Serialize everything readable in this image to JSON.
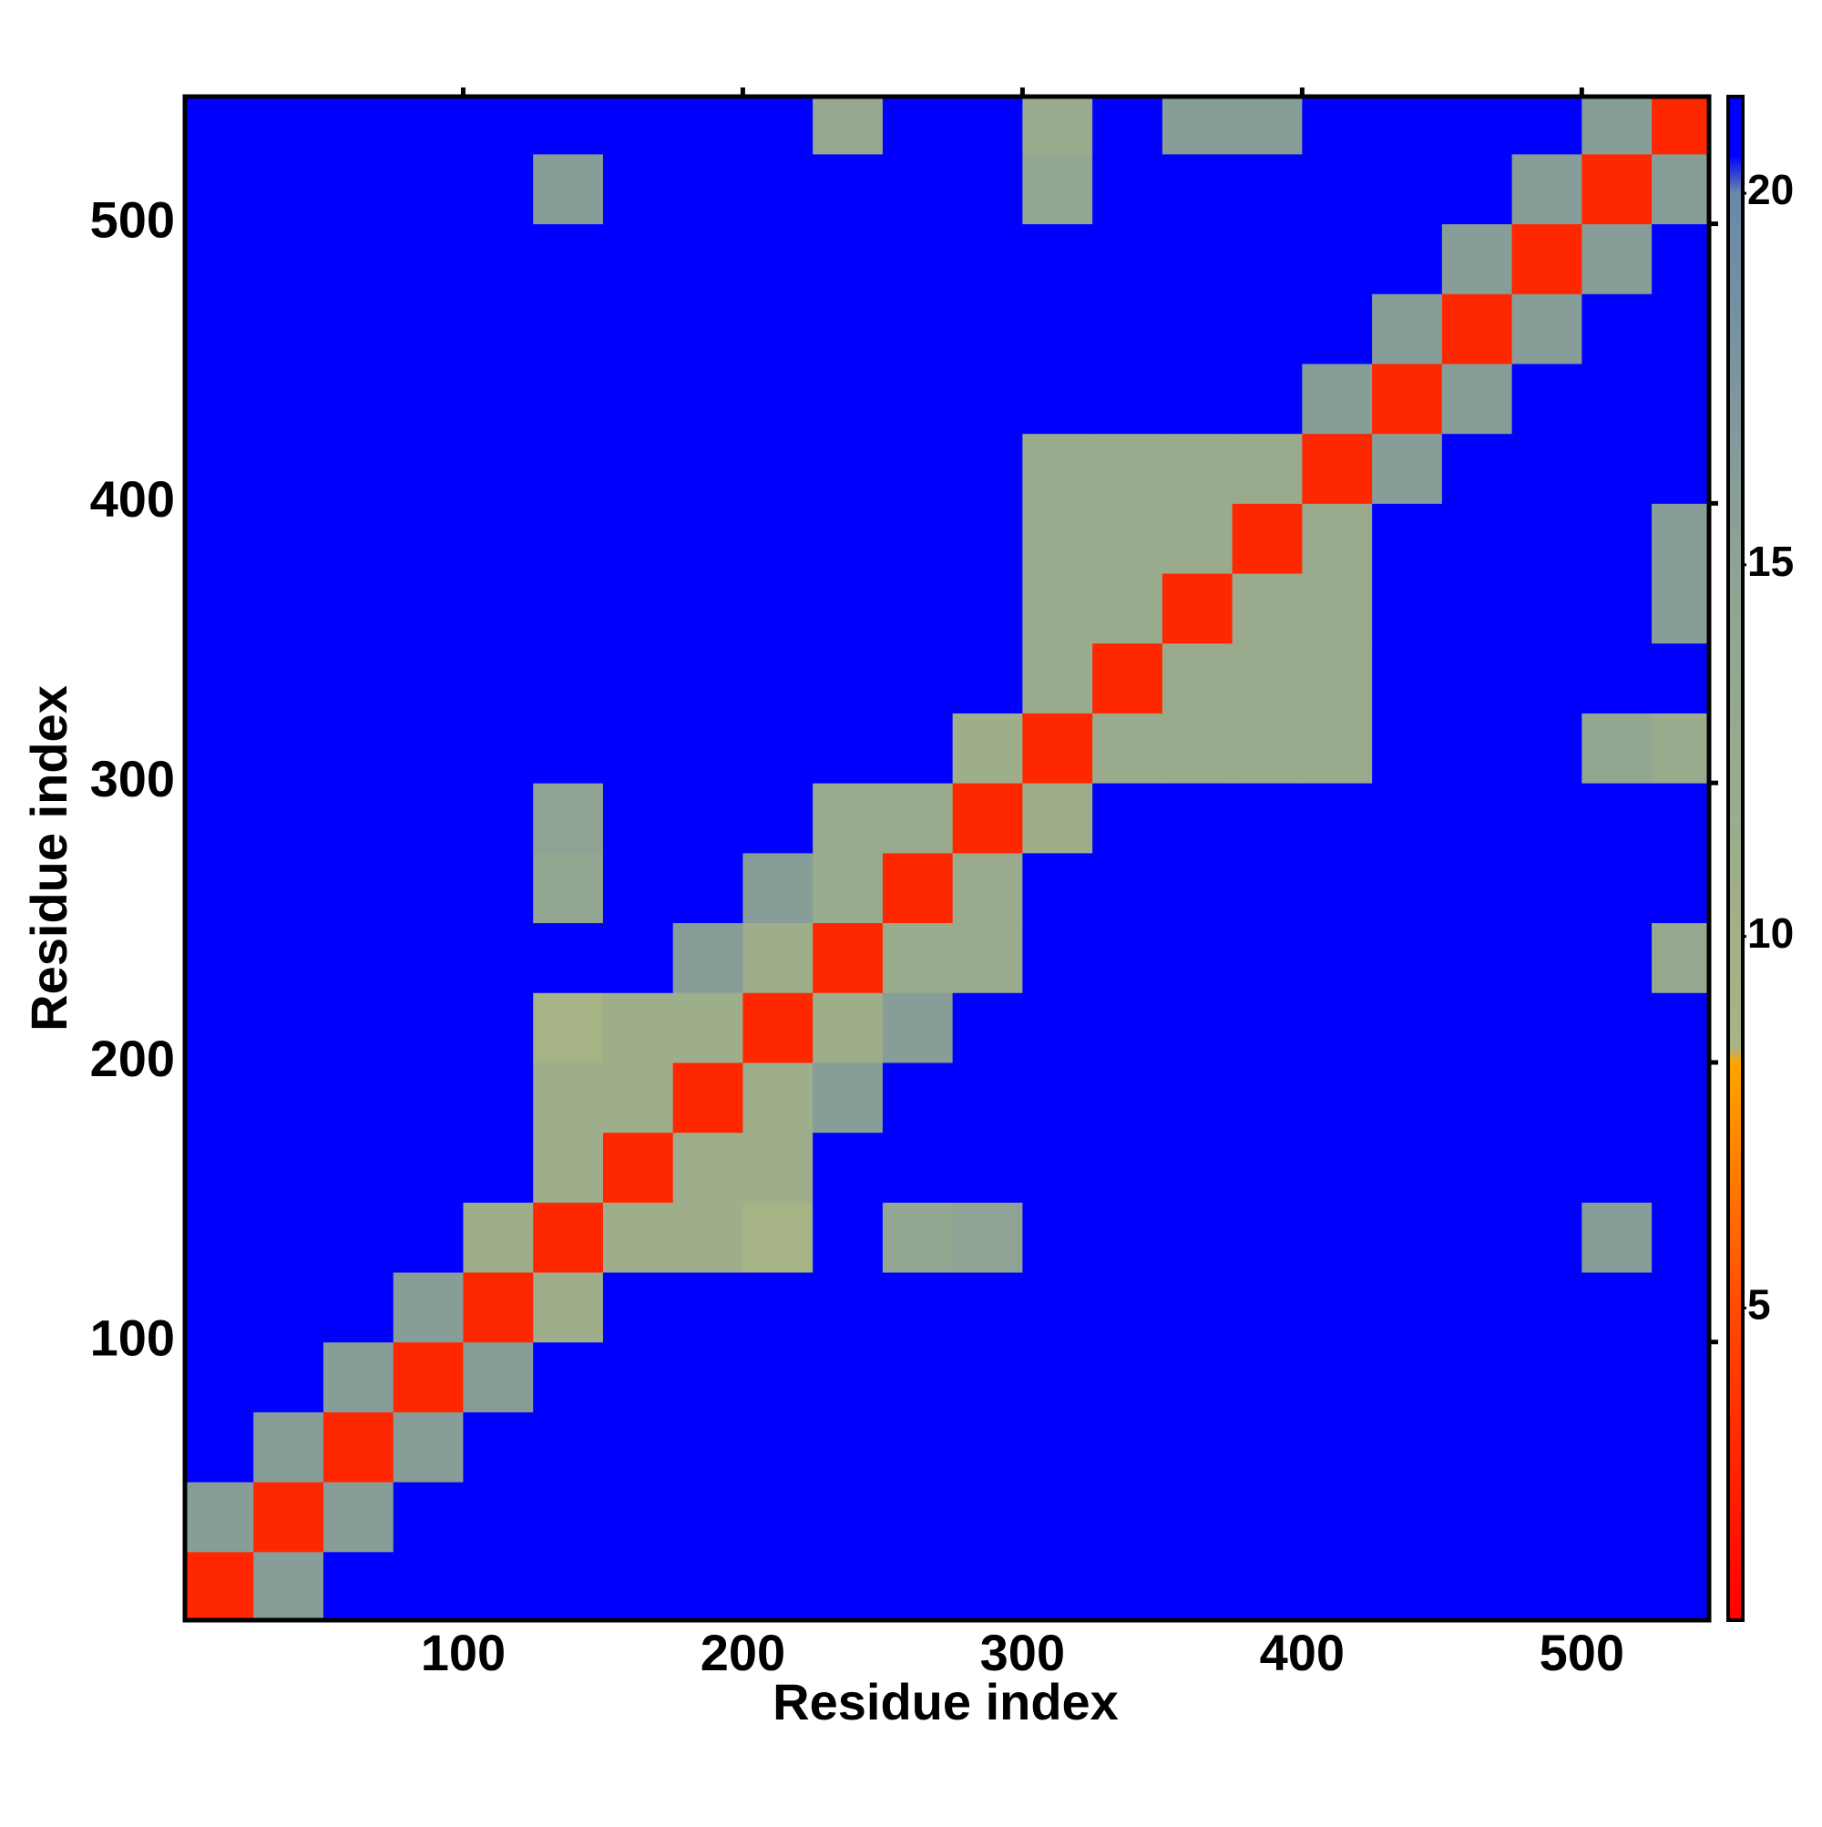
{
  "chart_data": {
    "type": "heatmap",
    "xlabel": "Residue index",
    "ylabel": "Residue index",
    "xlim": [
      0.5,
      545.5
    ],
    "ylim": [
      0.5,
      545.5
    ],
    "xticks": [
      100,
      200,
      300,
      400,
      500
    ],
    "yticks": [
      100,
      200,
      300,
      400,
      500
    ],
    "bins": [
      0,
      25,
      50,
      75,
      100,
      125,
      150,
      175,
      200,
      225,
      250,
      275,
      300,
      325,
      350,
      375,
      400,
      425,
      450,
      475,
      500,
      525,
      550
    ],
    "zlim": [
      0.8,
      21.3
    ],
    "zticks": [
      5,
      10,
      15,
      20
    ],
    "colorscale": [
      [
        0.8,
        "#ff0000"
      ],
      [
        5,
        "#ff4a00"
      ],
      [
        8.3,
        "#ffa500"
      ],
      [
        8.5,
        "#a8b484"
      ],
      [
        15,
        "#8ea394"
      ],
      [
        20,
        "#6a88a8"
      ],
      [
        20.5,
        "#0000ff"
      ]
    ],
    "z": [
      [
        3,
        16,
        21,
        21,
        21,
        21,
        21,
        21,
        21,
        21,
        21,
        21,
        21,
        21,
        21,
        21,
        21,
        21,
        21,
        21,
        21,
        21
      ],
      [
        16,
        3,
        16,
        21,
        21,
        21,
        21,
        21,
        21,
        21,
        21,
        21,
        21,
        21,
        21,
        21,
        21,
        21,
        21,
        21,
        21,
        21
      ],
      [
        21,
        16,
        3,
        16,
        21,
        21,
        21,
        21,
        21,
        21,
        21,
        21,
        21,
        21,
        21,
        21,
        21,
        21,
        21,
        21,
        21,
        21
      ],
      [
        21,
        21,
        16,
        3,
        16,
        21,
        21,
        21,
        21,
        21,
        21,
        21,
        21,
        21,
        21,
        21,
        21,
        21,
        21,
        21,
        21,
        21
      ],
      [
        21,
        21,
        21,
        16,
        3,
        11,
        21,
        21,
        21,
        21,
        21,
        21,
        21,
        21,
        21,
        21,
        21,
        21,
        21,
        21,
        21,
        21
      ],
      [
        21,
        21,
        21,
        21,
        11,
        3,
        11,
        11,
        9,
        21,
        14,
        15,
        21,
        21,
        21,
        21,
        21,
        21,
        21,
        21,
        16,
        21
      ],
      [
        21,
        21,
        21,
        21,
        21,
        11,
        3,
        11,
        11,
        21,
        21,
        21,
        21,
        21,
        21,
        21,
        21,
        21,
        21,
        21,
        21,
        21
      ],
      [
        21,
        21,
        21,
        21,
        21,
        11,
        11,
        3,
        11,
        16,
        21,
        21,
        21,
        21,
        21,
        21,
        21,
        21,
        21,
        21,
        21,
        21
      ],
      [
        21,
        21,
        21,
        21,
        21,
        9,
        11,
        11,
        3,
        11,
        16,
        21,
        21,
        21,
        21,
        21,
        21,
        21,
        21,
        21,
        21,
        21
      ],
      [
        21,
        21,
        21,
        21,
        21,
        21,
        21,
        16,
        11,
        3,
        12,
        12,
        21,
        21,
        21,
        21,
        21,
        21,
        21,
        21,
        21,
        13
      ],
      [
        21,
        21,
        21,
        21,
        21,
        14,
        21,
        21,
        16,
        12,
        3,
        12,
        21,
        21,
        21,
        21,
        21,
        21,
        21,
        21,
        21,
        21
      ],
      [
        21,
        21,
        21,
        21,
        21,
        15,
        21,
        21,
        21,
        12,
        12,
        3,
        11,
        21,
        21,
        21,
        21,
        21,
        21,
        21,
        21,
        21
      ],
      [
        21,
        21,
        21,
        21,
        21,
        21,
        21,
        21,
        21,
        21,
        21,
        11,
        3,
        12,
        12,
        12,
        12,
        21,
        21,
        21,
        14,
        12
      ],
      [
        21,
        21,
        21,
        21,
        21,
        21,
        21,
        21,
        21,
        21,
        21,
        21,
        12,
        3,
        12,
        12,
        12,
        21,
        21,
        21,
        21,
        21
      ],
      [
        21,
        21,
        21,
        21,
        21,
        21,
        21,
        21,
        21,
        21,
        21,
        21,
        12,
        12,
        3,
        12,
        12,
        21,
        21,
        21,
        21,
        16
      ],
      [
        21,
        21,
        21,
        21,
        21,
        21,
        21,
        21,
        21,
        21,
        21,
        21,
        12,
        12,
        12,
        3,
        12,
        21,
        21,
        21,
        21,
        16
      ],
      [
        21,
        21,
        21,
        21,
        21,
        21,
        21,
        21,
        21,
        21,
        21,
        21,
        12,
        12,
        12,
        12,
        3,
        16,
        21,
        21,
        21,
        21
      ],
      [
        21,
        21,
        21,
        21,
        21,
        21,
        21,
        21,
        21,
        21,
        21,
        21,
        21,
        21,
        21,
        21,
        16,
        3,
        16,
        21,
        21,
        21
      ],
      [
        21,
        21,
        21,
        21,
        21,
        21,
        21,
        21,
        21,
        21,
        21,
        21,
        21,
        21,
        21,
        21,
        21,
        16,
        3,
        16,
        21,
        21
      ],
      [
        21,
        21,
        21,
        21,
        21,
        21,
        21,
        21,
        21,
        21,
        21,
        21,
        21,
        21,
        21,
        21,
        21,
        21,
        16,
        3,
        16,
        21
      ],
      [
        21,
        21,
        21,
        21,
        21,
        16,
        21,
        21,
        21,
        21,
        21,
        21,
        14,
        21,
        21,
        21,
        21,
        21,
        21,
        16,
        3,
        16
      ],
      [
        21,
        21,
        21,
        21,
        21,
        21,
        21,
        21,
        21,
        13,
        21,
        21,
        12,
        21,
        16,
        16,
        21,
        21,
        21,
        21,
        16,
        3
      ]
    ]
  }
}
